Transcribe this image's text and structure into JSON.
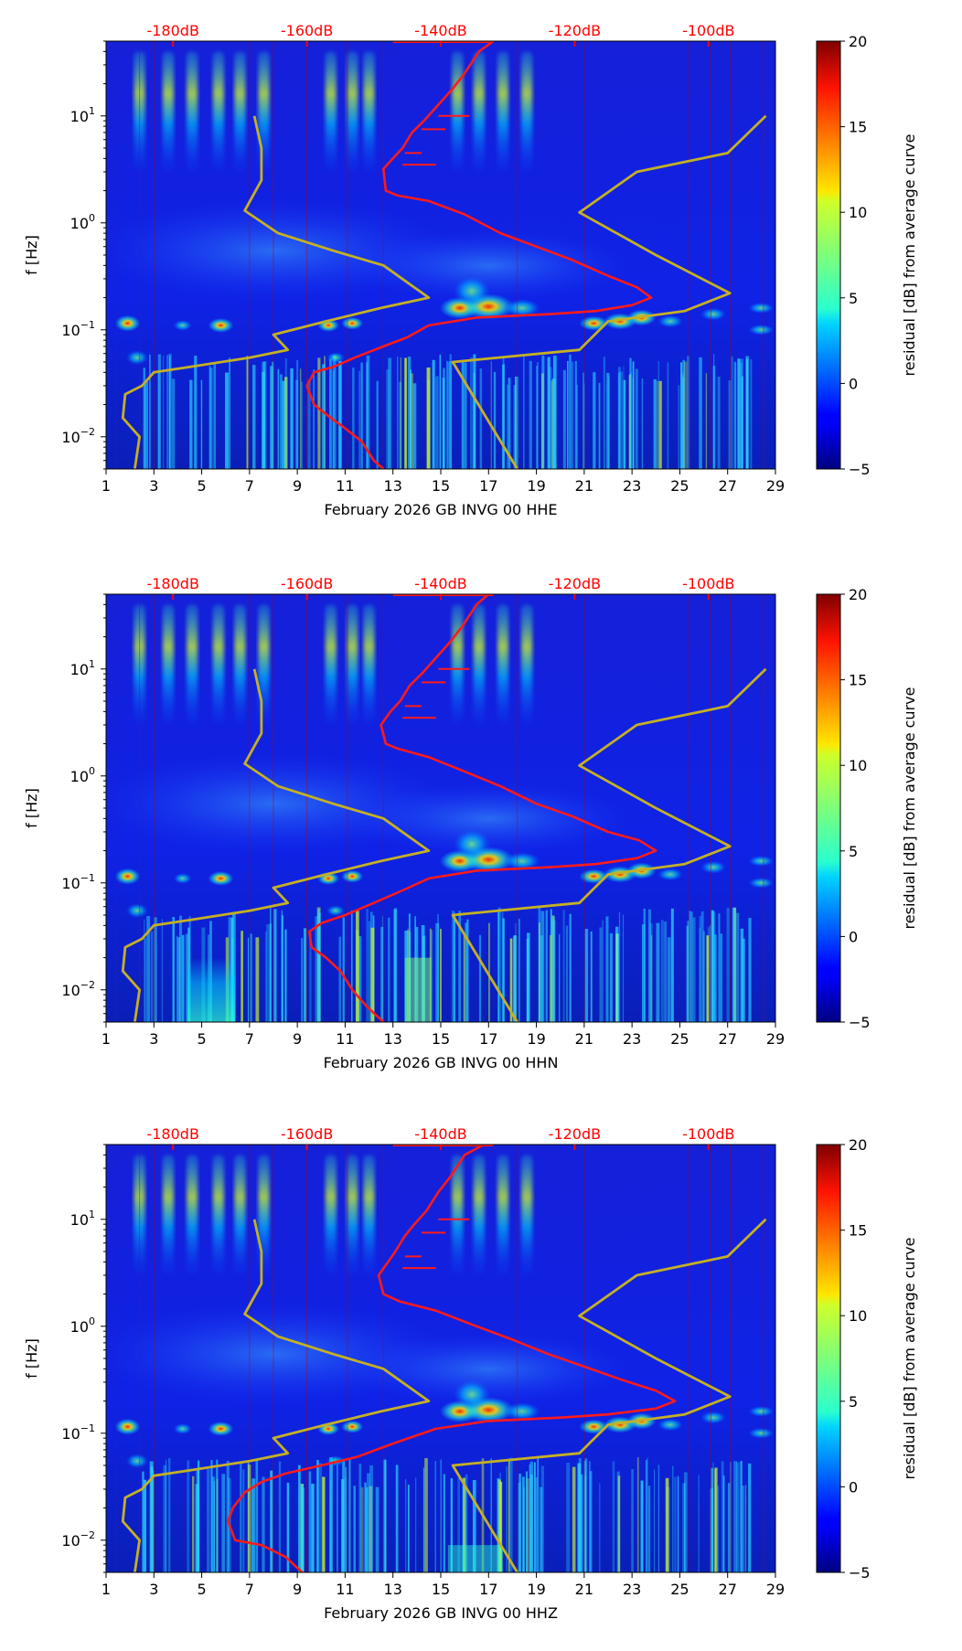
{
  "chart_data": [
    {
      "type": "heatmap",
      "subtype": "spectrogram-residual",
      "xlabel": "February 2026 GB INVG 00 HHE",
      "ylabel": "f [Hz]",
      "x_ticks": [
        "1",
        "3",
        "5",
        "7",
        "9",
        "11",
        "13",
        "15",
        "17",
        "19",
        "21",
        "23",
        "25",
        "27",
        "29"
      ],
      "xlim": [
        1,
        29
      ],
      "y_ticks": [
        0.01,
        0.1,
        1,
        10
      ],
      "ylim": [
        0.005,
        50
      ],
      "y_scale": "log",
      "top_axis_labels": [
        "-180dB",
        "-160dB",
        "-140dB",
        "-120dB",
        "-100dB"
      ],
      "top_axis_positions_day": [
        3.8,
        9.4,
        15.0,
        20.6,
        26.2
      ],
      "colorbar": {
        "label": "residual [dB] from average curve",
        "ticks": [
          "−5",
          "0",
          "5",
          "10",
          "15",
          "20"
        ],
        "range": [
          -5,
          20
        ]
      },
      "series": [
        {
          "name": "station median curve",
          "color": "#ff1a1a",
          "points": [
            [
              17.2,
              50
            ],
            [
              16.6,
              40
            ],
            [
              16.0,
              25
            ],
            [
              15.5,
              18
            ],
            [
              14.8,
              12
            ],
            [
              14.3,
              9
            ],
            [
              13.8,
              7
            ],
            [
              13.4,
              5
            ],
            [
              13.0,
              4
            ],
            [
              12.6,
              3.2
            ],
            [
              12.7,
              2.0
            ],
            [
              13.2,
              1.8
            ],
            [
              14.5,
              1.6
            ],
            [
              16.0,
              1.2
            ],
            [
              17.5,
              0.8
            ],
            [
              19.0,
              0.6
            ],
            [
              20.5,
              0.45
            ],
            [
              22.0,
              0.32
            ],
            [
              23.2,
              0.25
            ],
            [
              23.8,
              0.2
            ],
            [
              23.0,
              0.17
            ],
            [
              21.5,
              0.15
            ],
            [
              19.5,
              0.14
            ],
            [
              16.5,
              0.13
            ],
            [
              14.5,
              0.11
            ],
            [
              13.6,
              0.085
            ],
            [
              12.6,
              0.07
            ],
            [
              11.4,
              0.055
            ],
            [
              10.5,
              0.045
            ],
            [
              9.7,
              0.04
            ],
            [
              9.4,
              0.03
            ],
            [
              9.7,
              0.02
            ],
            [
              10.4,
              0.015
            ],
            [
              11.0,
              0.012
            ],
            [
              11.7,
              0.009
            ],
            [
              12.2,
              0.006
            ],
            [
              12.6,
              0.005
            ]
          ]
        },
        {
          "name": "low noise model",
          "color": "#c4b024",
          "points": [
            [
              7.2,
              10
            ],
            [
              7.5,
              5
            ],
            [
              7.5,
              2.5
            ],
            [
              6.8,
              1.3
            ],
            [
              8.2,
              0.8
            ],
            [
              10.5,
              0.55
            ],
            [
              12.6,
              0.4
            ],
            [
              14.5,
              0.2
            ],
            [
              12.5,
              0.16
            ],
            [
              10.2,
              0.12
            ],
            [
              8.0,
              0.09
            ],
            [
              8.6,
              0.065
            ],
            [
              7.0,
              0.055
            ],
            [
              4.5,
              0.045
            ],
            [
              3.0,
              0.04
            ],
            [
              2.5,
              0.03
            ],
            [
              1.8,
              0.025
            ],
            [
              1.7,
              0.015
            ],
            [
              2.4,
              0.01
            ],
            [
              2.2,
              0.005
            ]
          ]
        },
        {
          "name": "high noise model",
          "color": "#c4b024",
          "points": [
            [
              28.6,
              10
            ],
            [
              27.0,
              4.5
            ],
            [
              23.2,
              3.0
            ],
            [
              20.8,
              1.25
            ],
            [
              24.0,
              0.5
            ],
            [
              27.1,
              0.22
            ],
            [
              25.2,
              0.15
            ],
            [
              22.0,
              0.12
            ],
            [
              20.8,
              0.065
            ],
            [
              15.5,
              0.05
            ],
            [
              18.2,
              0.005
            ]
          ]
        }
      ]
    },
    {
      "type": "heatmap",
      "subtype": "spectrogram-residual",
      "xlabel": "February 2026 GB INVG 00 HHN",
      "ylabel": "f [Hz]",
      "x_ticks": [
        "1",
        "3",
        "5",
        "7",
        "9",
        "11",
        "13",
        "15",
        "17",
        "19",
        "21",
        "23",
        "25",
        "27",
        "29"
      ],
      "xlim": [
        1,
        29
      ],
      "y_ticks": [
        0.01,
        0.1,
        1,
        10
      ],
      "ylim": [
        0.005,
        50
      ],
      "y_scale": "log",
      "top_axis_labels": [
        "-180dB",
        "-160dB",
        "-140dB",
        "-120dB",
        "-100dB"
      ],
      "top_axis_positions_day": [
        3.8,
        9.4,
        15.0,
        20.6,
        26.2
      ],
      "colorbar": {
        "label": "residual [dB] from average curve",
        "ticks": [
          "−5",
          "0",
          "5",
          "10",
          "15",
          "20"
        ],
        "range": [
          -5,
          20
        ]
      },
      "series": [
        {
          "name": "station median curve",
          "color": "#ff1a1a",
          "points": [
            [
              17.0,
              50
            ],
            [
              16.5,
              40
            ],
            [
              15.9,
              25
            ],
            [
              15.4,
              18
            ],
            [
              14.7,
              12
            ],
            [
              14.2,
              9
            ],
            [
              13.7,
              7
            ],
            [
              13.3,
              5
            ],
            [
              12.9,
              4
            ],
            [
              12.5,
              3.0
            ],
            [
              12.7,
              2.0
            ],
            [
              13.2,
              1.8
            ],
            [
              14.5,
              1.5
            ],
            [
              16.0,
              1.1
            ],
            [
              17.5,
              0.8
            ],
            [
              19.0,
              0.55
            ],
            [
              20.5,
              0.42
            ],
            [
              22.0,
              0.3
            ],
            [
              23.3,
              0.25
            ],
            [
              24.0,
              0.2
            ],
            [
              23.2,
              0.17
            ],
            [
              21.5,
              0.15
            ],
            [
              19.5,
              0.14
            ],
            [
              16.5,
              0.13
            ],
            [
              14.5,
              0.11
            ],
            [
              13.4,
              0.085
            ],
            [
              12.2,
              0.065
            ],
            [
              11.0,
              0.05
            ],
            [
              10.0,
              0.042
            ],
            [
              9.5,
              0.035
            ],
            [
              9.6,
              0.025
            ],
            [
              10.2,
              0.02
            ],
            [
              10.8,
              0.015
            ],
            [
              11.3,
              0.01
            ],
            [
              11.9,
              0.007
            ],
            [
              12.6,
              0.005
            ]
          ]
        },
        {
          "name": "low noise model",
          "color": "#c4b024",
          "points": [
            [
              7.2,
              10
            ],
            [
              7.5,
              5
            ],
            [
              7.5,
              2.5
            ],
            [
              6.8,
              1.3
            ],
            [
              8.2,
              0.8
            ],
            [
              10.5,
              0.55
            ],
            [
              12.6,
              0.4
            ],
            [
              14.5,
              0.2
            ],
            [
              12.5,
              0.16
            ],
            [
              10.2,
              0.12
            ],
            [
              8.0,
              0.09
            ],
            [
              8.6,
              0.065
            ],
            [
              7.0,
              0.055
            ],
            [
              4.5,
              0.045
            ],
            [
              3.0,
              0.04
            ],
            [
              2.5,
              0.03
            ],
            [
              1.8,
              0.025
            ],
            [
              1.7,
              0.015
            ],
            [
              2.4,
              0.01
            ],
            [
              2.2,
              0.005
            ]
          ]
        },
        {
          "name": "high noise model",
          "color": "#c4b024",
          "points": [
            [
              28.6,
              10
            ],
            [
              27.0,
              4.5
            ],
            [
              23.2,
              3.0
            ],
            [
              20.8,
              1.25
            ],
            [
              24.0,
              0.5
            ],
            [
              27.1,
              0.22
            ],
            [
              25.2,
              0.15
            ],
            [
              22.0,
              0.12
            ],
            [
              20.8,
              0.065
            ],
            [
              15.5,
              0.05
            ],
            [
              18.2,
              0.005
            ]
          ]
        }
      ]
    },
    {
      "type": "heatmap",
      "subtype": "spectrogram-residual",
      "xlabel": "February 2026 GB INVG 00 HHZ",
      "ylabel": "f [Hz]",
      "x_ticks": [
        "1",
        "3",
        "5",
        "7",
        "9",
        "11",
        "13",
        "15",
        "17",
        "19",
        "21",
        "23",
        "25",
        "27",
        "29"
      ],
      "xlim": [
        1,
        29
      ],
      "y_ticks": [
        0.01,
        0.1,
        1,
        10
      ],
      "ylim": [
        0.005,
        50
      ],
      "y_scale": "log",
      "top_axis_labels": [
        "-180dB",
        "-160dB",
        "-140dB",
        "-120dB",
        "-100dB"
      ],
      "top_axis_positions_day": [
        3.8,
        9.4,
        15.0,
        20.6,
        26.2
      ],
      "colorbar": {
        "label": "residual [dB] from average curve",
        "ticks": [
          "−5",
          "0",
          "5",
          "10",
          "15",
          "20"
        ],
        "range": [
          -5,
          20
        ]
      },
      "series": [
        {
          "name": "station median curve",
          "color": "#ff1a1a",
          "points": [
            [
              16.8,
              50
            ],
            [
              16.0,
              40
            ],
            [
              15.4,
              25
            ],
            [
              14.9,
              18
            ],
            [
              14.4,
              12
            ],
            [
              13.9,
              9
            ],
            [
              13.5,
              7
            ],
            [
              13.1,
              5
            ],
            [
              12.8,
              4
            ],
            [
              12.4,
              3.0
            ],
            [
              12.6,
              2.0
            ],
            [
              13.3,
              1.7
            ],
            [
              14.8,
              1.4
            ],
            [
              16.5,
              1.0
            ],
            [
              18.0,
              0.75
            ],
            [
              19.5,
              0.55
            ],
            [
              21.0,
              0.42
            ],
            [
              22.5,
              0.32
            ],
            [
              24.0,
              0.25
            ],
            [
              24.8,
              0.2
            ],
            [
              24.0,
              0.17
            ],
            [
              22.0,
              0.15
            ],
            [
              20.0,
              0.14
            ],
            [
              17.0,
              0.13
            ],
            [
              14.8,
              0.11
            ],
            [
              13.0,
              0.08
            ],
            [
              11.5,
              0.06
            ],
            [
              10.0,
              0.05
            ],
            [
              8.5,
              0.042
            ],
            [
              7.5,
              0.035
            ],
            [
              6.8,
              0.028
            ],
            [
              6.3,
              0.02
            ],
            [
              6.1,
              0.015
            ],
            [
              6.4,
              0.01
            ],
            [
              7.5,
              0.009
            ],
            [
              8.5,
              0.007
            ],
            [
              9.2,
              0.005
            ]
          ]
        },
        {
          "name": "low noise model",
          "color": "#c4b024",
          "points": [
            [
              7.2,
              10
            ],
            [
              7.5,
              5
            ],
            [
              7.5,
              2.5
            ],
            [
              6.8,
              1.3
            ],
            [
              8.2,
              0.8
            ],
            [
              10.5,
              0.55
            ],
            [
              12.6,
              0.4
            ],
            [
              14.5,
              0.2
            ],
            [
              12.5,
              0.16
            ],
            [
              10.2,
              0.12
            ],
            [
              8.0,
              0.09
            ],
            [
              8.6,
              0.065
            ],
            [
              7.0,
              0.055
            ],
            [
              4.5,
              0.045
            ],
            [
              3.0,
              0.04
            ],
            [
              2.5,
              0.03
            ],
            [
              1.8,
              0.025
            ],
            [
              1.7,
              0.015
            ],
            [
              2.4,
              0.01
            ],
            [
              2.2,
              0.005
            ]
          ]
        },
        {
          "name": "high noise model",
          "color": "#c4b024",
          "points": [
            [
              28.6,
              10
            ],
            [
              27.0,
              4.5
            ],
            [
              23.2,
              3.0
            ],
            [
              20.8,
              1.25
            ],
            [
              24.0,
              0.5
            ],
            [
              27.1,
              0.22
            ],
            [
              25.2,
              0.15
            ],
            [
              22.0,
              0.12
            ],
            [
              20.8,
              0.065
            ],
            [
              15.5,
              0.05
            ],
            [
              18.2,
              0.005
            ]
          ]
        }
      ]
    }
  ]
}
